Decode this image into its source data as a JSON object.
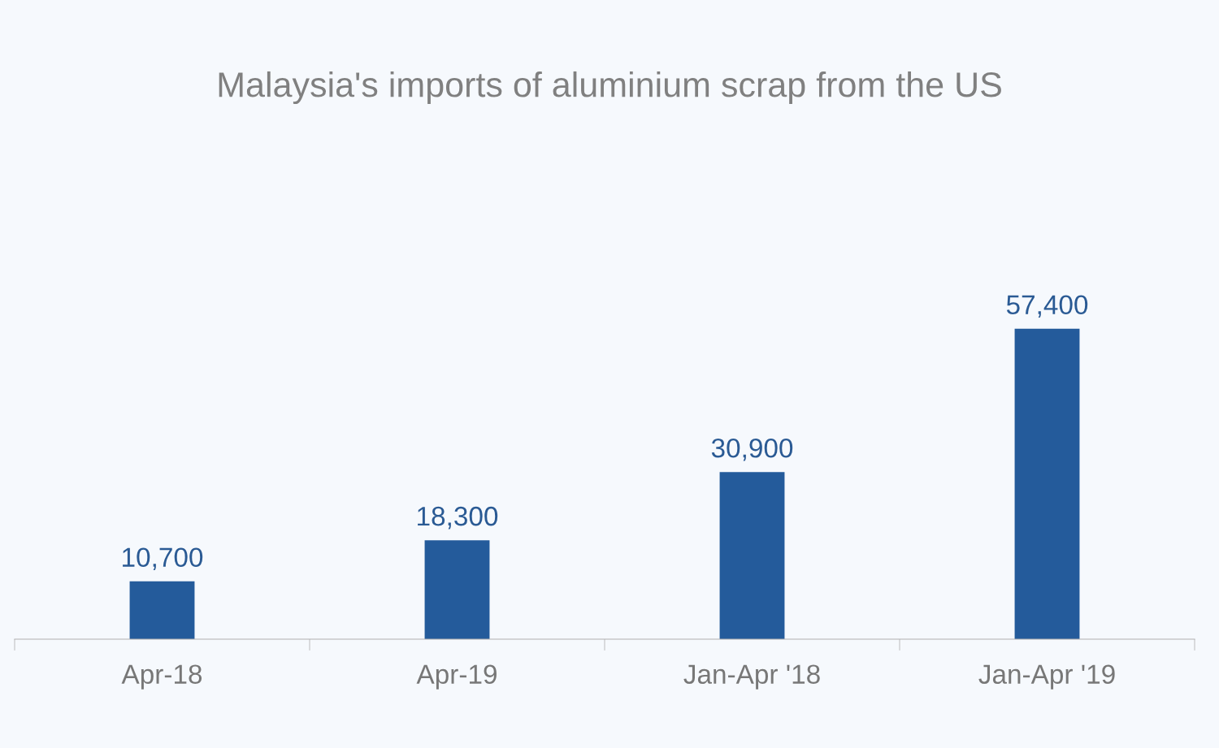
{
  "chart_data": {
    "type": "bar",
    "title": "Malaysia's imports of aluminium scrap from the US",
    "categories": [
      "Apr-18",
      "Apr-19",
      "Jan-Apr '18",
      "Jan-Apr '19"
    ],
    "values": [
      10700,
      18300,
      30900,
      57400
    ],
    "color": "#245b9b",
    "value_labels": [
      "10,700",
      "18,300",
      "30,900",
      "57,400"
    ],
    "grid": false,
    "legend": false
  }
}
